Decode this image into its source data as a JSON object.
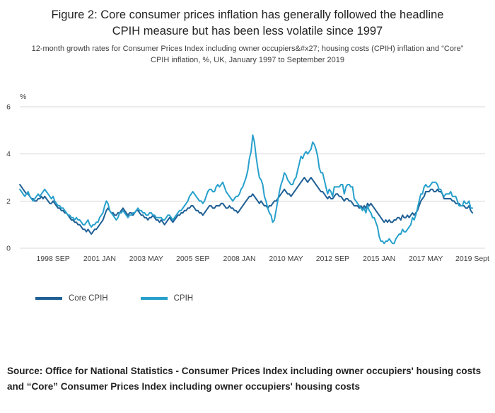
{
  "figure": {
    "title": "Figure 2: Core consumer prices inflation has generally followed the headline CPIH measure but has been less volatile since 1997",
    "subtitle": "12-month growth rates for Consumer Prices Index including owner occupiers&#x27; housing costs (CPIH) inflation and “Core” CPIH inflation, %, UK, January 1997 to September 2019",
    "source": "Source: Office for National Statistics - Consumer Prices Index including owner occupiers' housing costs and “Core” Consumer Prices Index including owner occupiers' housing costs"
  },
  "chart_data": {
    "type": "line",
    "title": "Figure 2: Core consumer prices inflation has generally followed the headline CPIH measure but has been less volatile since 1997",
    "subtitle": "12-month growth rates for CPIH inflation and Core CPIH inflation, %, UK, January 1997 to September 2019",
    "ylabel": "%",
    "ylim": [
      0,
      6
    ],
    "yticks": [
      0,
      2,
      4,
      6
    ],
    "grid": "horizontal",
    "legend_position": "bottom-left",
    "x_start": "1997-01",
    "x_end": "2019-09",
    "x_frequency": "monthly",
    "xticks": [
      {
        "label": "1998 SEP",
        "index": 20
      },
      {
        "label": "2001 JAN",
        "index": 48
      },
      {
        "label": "2003 MAY",
        "index": 76
      },
      {
        "label": "2005 SEP",
        "index": 104
      },
      {
        "label": "2008 JAN",
        "index": 132
      },
      {
        "label": "2010 MAY",
        "index": 160
      },
      {
        "label": "2012 SEP",
        "index": 188
      },
      {
        "label": "2015 JAN",
        "index": 216
      },
      {
        "label": "2017 MAY",
        "index": 244
      },
      {
        "label": "2019 Sept",
        "index": 272
      }
    ],
    "series": [
      {
        "name": "Core CPIH",
        "color": "#206095",
        "values": [
          2.7,
          2.6,
          2.5,
          2.4,
          2.3,
          2.3,
          2.2,
          2.1,
          2.1,
          2.0,
          2.0,
          2.1,
          2.1,
          2.2,
          2.1,
          2.2,
          2.1,
          2.0,
          1.9,
          1.9,
          2.0,
          1.9,
          1.8,
          1.7,
          1.7,
          1.6,
          1.6,
          1.5,
          1.5,
          1.4,
          1.3,
          1.2,
          1.2,
          1.1,
          1.1,
          1.0,
          1.0,
          0.9,
          0.8,
          0.8,
          0.7,
          0.8,
          0.7,
          0.6,
          0.7,
          0.8,
          0.8,
          0.9,
          1.0,
          1.1,
          1.2,
          1.4,
          1.6,
          1.7,
          1.6,
          1.5,
          1.5,
          1.4,
          1.4,
          1.5,
          1.5,
          1.6,
          1.7,
          1.6,
          1.5,
          1.4,
          1.5,
          1.5,
          1.4,
          1.5,
          1.6,
          1.6,
          1.5,
          1.4,
          1.4,
          1.3,
          1.3,
          1.2,
          1.3,
          1.3,
          1.4,
          1.3,
          1.2,
          1.2,
          1.1,
          1.2,
          1.1,
          1.0,
          1.1,
          1.2,
          1.3,
          1.2,
          1.1,
          1.2,
          1.3,
          1.4,
          1.4,
          1.5,
          1.5,
          1.6,
          1.6,
          1.7,
          1.7,
          1.8,
          1.8,
          1.7,
          1.6,
          1.6,
          1.5,
          1.5,
          1.4,
          1.5,
          1.6,
          1.7,
          1.8,
          1.8,
          1.7,
          1.7,
          1.8,
          1.8,
          1.8,
          1.9,
          1.9,
          1.8,
          1.7,
          1.7,
          1.8,
          1.7,
          1.7,
          1.6,
          1.6,
          1.5,
          1.6,
          1.7,
          1.8,
          1.9,
          2.0,
          2.1,
          2.2,
          2.2,
          2.3,
          2.2,
          2.1,
          2.0,
          1.9,
          2.0,
          1.9,
          1.8,
          1.8,
          1.7,
          1.8,
          1.8,
          1.9,
          2.0,
          2.0,
          2.1,
          2.2,
          2.3,
          2.4,
          2.5,
          2.4,
          2.3,
          2.3,
          2.2,
          2.3,
          2.4,
          2.5,
          2.6,
          2.7,
          2.8,
          2.9,
          3.0,
          2.9,
          2.8,
          2.9,
          3.0,
          2.9,
          2.8,
          2.7,
          2.6,
          2.5,
          2.4,
          2.4,
          2.3,
          2.2,
          2.1,
          2.2,
          2.1,
          2.1,
          2.2,
          2.3,
          2.3,
          2.2,
          2.2,
          2.1,
          2.0,
          2.1,
          2.1,
          2.0,
          2.0,
          1.9,
          1.8,
          1.8,
          1.8,
          1.7,
          1.8,
          1.7,
          1.8,
          1.7,
          1.9,
          1.8,
          1.9,
          1.8,
          1.7,
          1.6,
          1.5,
          1.4,
          1.3,
          1.2,
          1.1,
          1.2,
          1.1,
          1.2,
          1.1,
          1.1,
          1.2,
          1.2,
          1.3,
          1.3,
          1.2,
          1.4,
          1.3,
          1.3,
          1.4,
          1.3,
          1.4,
          1.5,
          1.4,
          1.5,
          1.6,
          1.8,
          2.0,
          2.1,
          2.2,
          2.4,
          2.4,
          2.4,
          2.5,
          2.5,
          2.4,
          2.4,
          2.5,
          2.4,
          2.4,
          2.3,
          2.1,
          2.1,
          2.1,
          2.1,
          2.1,
          2.0,
          2.0,
          1.9,
          1.9,
          1.9,
          1.8,
          1.8,
          1.8,
          1.7,
          1.7,
          1.8,
          1.6,
          1.5
        ]
      },
      {
        "name": "CPIH",
        "color": "#27a0cc",
        "values": [
          2.5,
          2.4,
          2.3,
          2.2,
          2.3,
          2.4,
          2.2,
          2.1,
          2.0,
          2.1,
          2.2,
          2.3,
          2.2,
          2.3,
          2.4,
          2.5,
          2.4,
          2.3,
          2.2,
          2.1,
          2.2,
          2.0,
          1.9,
          1.8,
          1.8,
          1.7,
          1.7,
          1.6,
          1.5,
          1.4,
          1.4,
          1.3,
          1.3,
          1.2,
          1.3,
          1.2,
          1.2,
          1.1,
          1.0,
          1.0,
          1.1,
          1.2,
          1.0,
          0.9,
          1.0,
          1.0,
          1.1,
          1.1,
          1.3,
          1.4,
          1.5,
          1.8,
          2.0,
          1.9,
          1.6,
          1.5,
          1.4,
          1.3,
          1.2,
          1.3,
          1.5,
          1.5,
          1.6,
          1.5,
          1.4,
          1.3,
          1.4,
          1.4,
          1.5,
          1.5,
          1.6,
          1.7,
          1.6,
          1.6,
          1.5,
          1.5,
          1.4,
          1.4,
          1.5,
          1.5,
          1.4,
          1.4,
          1.3,
          1.3,
          1.3,
          1.3,
          1.2,
          1.2,
          1.3,
          1.4,
          1.4,
          1.3,
          1.2,
          1.3,
          1.4,
          1.5,
          1.6,
          1.6,
          1.7,
          1.8,
          1.9,
          2.0,
          2.2,
          2.3,
          2.4,
          2.3,
          2.2,
          2.1,
          2.0,
          2.0,
          1.9,
          2.0,
          2.2,
          2.4,
          2.5,
          2.5,
          2.4,
          2.4,
          2.6,
          2.7,
          2.6,
          2.7,
          2.8,
          2.6,
          2.4,
          2.3,
          2.2,
          2.1,
          2.0,
          2.1,
          2.2,
          2.2,
          2.3,
          2.5,
          2.6,
          2.8,
          3.0,
          3.3,
          3.8,
          4.1,
          4.8,
          4.5,
          3.9,
          3.4,
          3.0,
          2.9,
          2.7,
          2.2,
          2.0,
          1.7,
          1.5,
          1.4,
          1.1,
          1.2,
          1.6,
          2.0,
          2.4,
          2.7,
          2.9,
          3.2,
          3.1,
          2.9,
          2.8,
          2.7,
          2.7,
          2.9,
          3.0,
          3.3,
          3.6,
          3.9,
          3.8,
          4.0,
          4.1,
          4.0,
          4.1,
          4.2,
          4.5,
          4.4,
          4.2,
          3.9,
          3.4,
          3.2,
          3.2,
          2.9,
          2.6,
          2.3,
          2.5,
          2.4,
          2.2,
          2.6,
          2.6,
          2.6,
          2.6,
          2.7,
          2.7,
          2.3,
          2.6,
          2.7,
          2.7,
          2.6,
          2.6,
          2.1,
          2.0,
          1.9,
          1.8,
          1.7,
          1.6,
          1.7,
          1.5,
          1.8,
          1.6,
          1.5,
          1.3,
          1.3,
          1.1,
          0.9,
          0.5,
          0.3,
          0.3,
          0.2,
          0.3,
          0.3,
          0.4,
          0.3,
          0.2,
          0.2,
          0.4,
          0.5,
          0.6,
          0.6,
          0.8,
          0.7,
          0.7,
          0.8,
          0.9,
          1.0,
          1.3,
          1.2,
          1.4,
          1.7,
          2.0,
          2.3,
          2.3,
          2.6,
          2.7,
          2.6,
          2.6,
          2.7,
          2.8,
          2.8,
          2.8,
          2.7,
          2.5,
          2.5,
          2.3,
          2.2,
          2.3,
          2.3,
          2.3,
          2.4,
          2.2,
          2.2,
          2.2,
          2.0,
          1.8,
          1.8,
          1.8,
          2.0,
          1.9,
          1.9,
          2.0,
          1.7,
          1.7
        ]
      }
    ],
    "style": {
      "gridline_color": "#d9d9d9",
      "axis_text_color": "#414042",
      "line_width": 2
    }
  }
}
